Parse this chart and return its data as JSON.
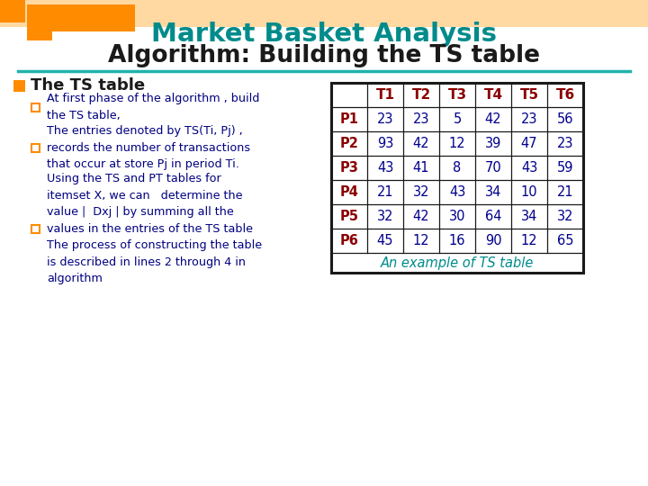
{
  "title_line1": "Market Basket Analysis",
  "title_line2": "Algorithm: Building the TS table",
  "title_line1_color": "#008B8B",
  "title_line2_color": "#1a1a1a",
  "background_color": "#ffffff",
  "bullet_color": "#FF8C00",
  "bullet_header": "The TS table",
  "bullet_header_color": "#1a1a1a",
  "sub_bullets": [
    "At first phase of the algorithm , build\nthe TS table,",
    "The entries denoted by TS(Ti, Pj) ,\nrecords the number of transactions\nthat occur at store Pj in period Ti.",
    "Using the TS and PT tables for\nitemset X, we can   determine the\nvalue |  Dxj | by summing all the\nvalues in the entries of the TS table\nThe process of constructing the table\nis described in lines 2 through 4 in\nalgorithm"
  ],
  "sub_bullet_color": "#000080",
  "sub_square_color": "#FF8C00",
  "table_header_row": [
    "",
    "T1",
    "T2",
    "T3",
    "T4",
    "T5",
    "T6"
  ],
  "table_header_color": "#8B0000",
  "table_rows": [
    [
      "P1",
      "23",
      "23",
      "5",
      "42",
      "23",
      "56"
    ],
    [
      "P2",
      "93",
      "42",
      "12",
      "39",
      "47",
      "23"
    ],
    [
      "P3",
      "43",
      "41",
      "8",
      "70",
      "43",
      "59"
    ],
    [
      "P4",
      "21",
      "32",
      "43",
      "34",
      "10",
      "21"
    ],
    [
      "P5",
      "32",
      "42",
      "30",
      "64",
      "34",
      "32"
    ],
    [
      "P6",
      "45",
      "12",
      "16",
      "90",
      "12",
      "65"
    ]
  ],
  "table_row_label_color": "#8B0000",
  "table_data_color": "#00008B",
  "table_caption": "An example of TS table",
  "table_caption_color": "#008B8B",
  "separator_color": "#20B2AA",
  "figsize": [
    7.2,
    5.4
  ],
  "dpi": 100
}
